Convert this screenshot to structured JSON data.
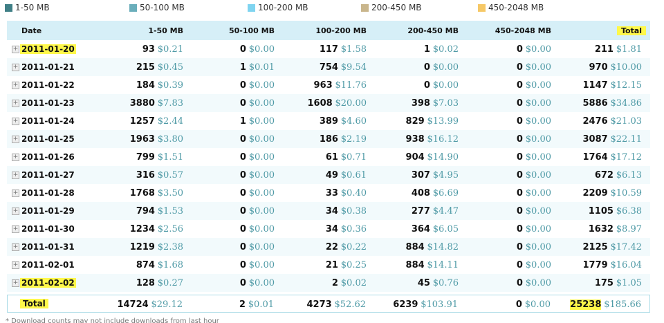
{
  "legend": [
    {
      "label": "1-50 MB",
      "color": "#3f7f86"
    },
    {
      "label": "50-100 MB",
      "color": "#6aaebb"
    },
    {
      "label": "100-200 MB",
      "color": "#7fd4f0"
    },
    {
      "label": "200-450 MB",
      "color": "#c9b68c"
    },
    {
      "label": "450-2048 MB",
      "color": "#f6c866"
    }
  ],
  "table": {
    "headers": [
      "Date",
      "1-50 MB",
      "50-100 MB",
      "100-200 MB",
      "200-450 MB",
      "450-2048 MB",
      "Total"
    ],
    "rows": [
      {
        "date": "2011-01-20",
        "highlight": true,
        "cells": [
          [
            "93",
            "$0.21"
          ],
          [
            "0",
            "$0.00"
          ],
          [
            "117",
            "$1.58"
          ],
          [
            "1",
            "$0.02"
          ],
          [
            "0",
            "$0.00"
          ],
          [
            "211",
            "$1.81"
          ]
        ]
      },
      {
        "date": "2011-01-21",
        "cells": [
          [
            "215",
            "$0.45"
          ],
          [
            "1",
            "$0.01"
          ],
          [
            "754",
            "$9.54"
          ],
          [
            "0",
            "$0.00"
          ],
          [
            "0",
            "$0.00"
          ],
          [
            "970",
            "$10.00"
          ]
        ]
      },
      {
        "date": "2011-01-22",
        "cells": [
          [
            "184",
            "$0.39"
          ],
          [
            "0",
            "$0.00"
          ],
          [
            "963",
            "$11.76"
          ],
          [
            "0",
            "$0.00"
          ],
          [
            "0",
            "$0.00"
          ],
          [
            "1147",
            "$12.15"
          ]
        ]
      },
      {
        "date": "2011-01-23",
        "cells": [
          [
            "3880",
            "$7.83"
          ],
          [
            "0",
            "$0.00"
          ],
          [
            "1608",
            "$20.00"
          ],
          [
            "398",
            "$7.03"
          ],
          [
            "0",
            "$0.00"
          ],
          [
            "5886",
            "$34.86"
          ]
        ]
      },
      {
        "date": "2011-01-24",
        "cells": [
          [
            "1257",
            "$2.44"
          ],
          [
            "1",
            "$0.00"
          ],
          [
            "389",
            "$4.60"
          ],
          [
            "829",
            "$13.99"
          ],
          [
            "0",
            "$0.00"
          ],
          [
            "2476",
            "$21.03"
          ]
        ]
      },
      {
        "date": "2011-01-25",
        "cells": [
          [
            "1963",
            "$3.80"
          ],
          [
            "0",
            "$0.00"
          ],
          [
            "186",
            "$2.19"
          ],
          [
            "938",
            "$16.12"
          ],
          [
            "0",
            "$0.00"
          ],
          [
            "3087",
            "$22.11"
          ]
        ]
      },
      {
        "date": "2011-01-26",
        "cells": [
          [
            "799",
            "$1.51"
          ],
          [
            "0",
            "$0.00"
          ],
          [
            "61",
            "$0.71"
          ],
          [
            "904",
            "$14.90"
          ],
          [
            "0",
            "$0.00"
          ],
          [
            "1764",
            "$17.12"
          ]
        ]
      },
      {
        "date": "2011-01-27",
        "cells": [
          [
            "316",
            "$0.57"
          ],
          [
            "0",
            "$0.00"
          ],
          [
            "49",
            "$0.61"
          ],
          [
            "307",
            "$4.95"
          ],
          [
            "0",
            "$0.00"
          ],
          [
            "672",
            "$6.13"
          ]
        ]
      },
      {
        "date": "2011-01-28",
        "cells": [
          [
            "1768",
            "$3.50"
          ],
          [
            "0",
            "$0.00"
          ],
          [
            "33",
            "$0.40"
          ],
          [
            "408",
            "$6.69"
          ],
          [
            "0",
            "$0.00"
          ],
          [
            "2209",
            "$10.59"
          ]
        ]
      },
      {
        "date": "2011-01-29",
        "cells": [
          [
            "794",
            "$1.53"
          ],
          [
            "0",
            "$0.00"
          ],
          [
            "34",
            "$0.38"
          ],
          [
            "277",
            "$4.47"
          ],
          [
            "0",
            "$0.00"
          ],
          [
            "1105",
            "$6.38"
          ]
        ]
      },
      {
        "date": "2011-01-30",
        "cells": [
          [
            "1234",
            "$2.56"
          ],
          [
            "0",
            "$0.00"
          ],
          [
            "34",
            "$0.36"
          ],
          [
            "364",
            "$6.05"
          ],
          [
            "0",
            "$0.00"
          ],
          [
            "1632",
            "$8.97"
          ]
        ]
      },
      {
        "date": "2011-01-31",
        "cells": [
          [
            "1219",
            "$2.38"
          ],
          [
            "0",
            "$0.00"
          ],
          [
            "22",
            "$0.22"
          ],
          [
            "884",
            "$14.82"
          ],
          [
            "0",
            "$0.00"
          ],
          [
            "2125",
            "$17.42"
          ]
        ]
      },
      {
        "date": "2011-02-01",
        "cells": [
          [
            "874",
            "$1.68"
          ],
          [
            "0",
            "$0.00"
          ],
          [
            "21",
            "$0.25"
          ],
          [
            "884",
            "$14.11"
          ],
          [
            "0",
            "$0.00"
          ],
          [
            "1779",
            "$16.04"
          ]
        ]
      },
      {
        "date": "2011-02-02",
        "highlight": true,
        "cells": [
          [
            "128",
            "$0.27"
          ],
          [
            "0",
            "$0.00"
          ],
          [
            "2",
            "$0.02"
          ],
          [
            "45",
            "$0.76"
          ],
          [
            "0",
            "$0.00"
          ],
          [
            "175",
            "$1.05"
          ]
        ]
      }
    ],
    "total": {
      "label": "Total",
      "cells": [
        [
          "14724",
          "$29.12"
        ],
        [
          "2",
          "$0.01"
        ],
        [
          "4273",
          "$52.62"
        ],
        [
          "6239",
          "$103.91"
        ],
        [
          "0",
          "$0.00"
        ],
        [
          "25238",
          "$185.66"
        ]
      ]
    }
  },
  "footnote": "* Download counts may not include downloads from last hour"
}
